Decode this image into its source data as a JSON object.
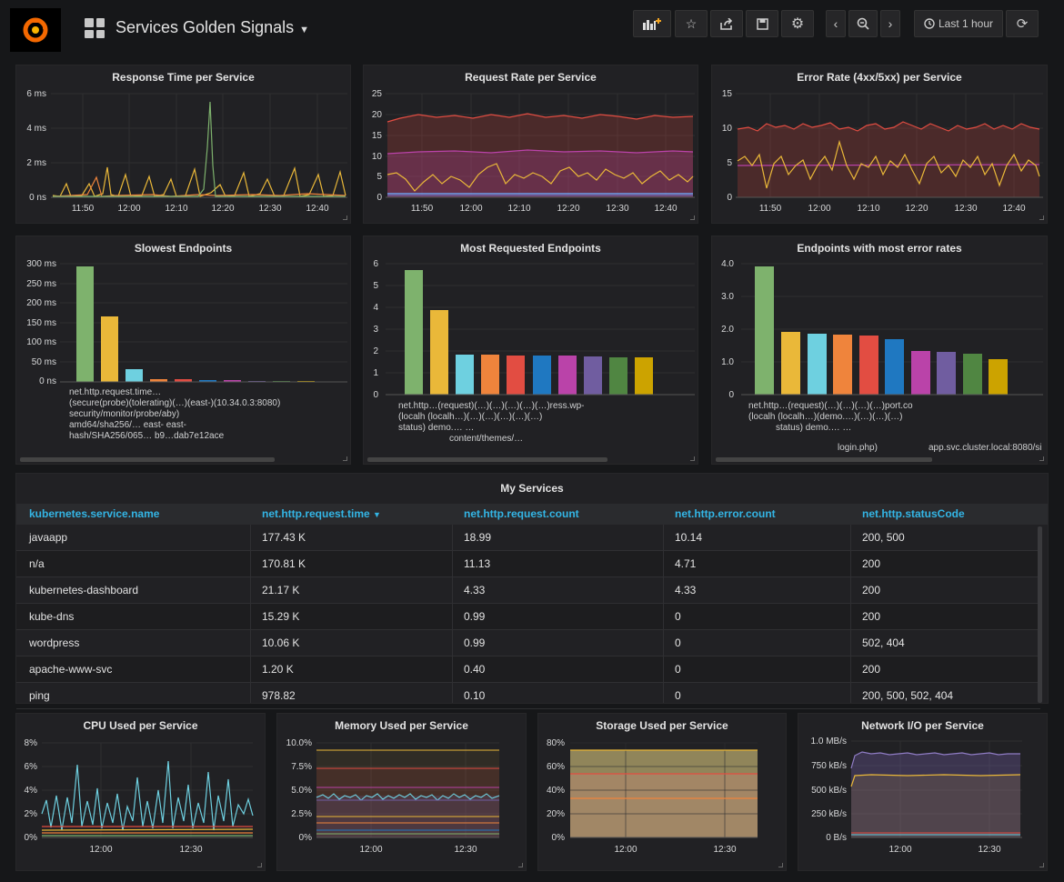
{
  "header": {
    "title": "Services Golden Signals",
    "time_range": "Last 1 hour"
  },
  "icons": {
    "logo": "grafana-logo-icon",
    "dashboards": "dashboard-grid-icon",
    "add_panel": "add-panel-icon",
    "star": "star-icon",
    "share": "share-icon",
    "save": "save-icon",
    "settings": "gear-icon",
    "back": "chevron-left-icon",
    "zoom": "zoom-out-icon",
    "forward": "chevron-right-icon",
    "clock": "clock-icon",
    "refresh": "refresh-icon"
  },
  "panels": {
    "response_time": {
      "title": "Response Time per Service"
    },
    "request_rate": {
      "title": "Request Rate per Service"
    },
    "error_rate": {
      "title": "Error Rate (4xx/5xx) per Service"
    },
    "slowest": {
      "title": "Slowest Endpoints"
    },
    "most_requested": {
      "title": "Most Requested Endpoints"
    },
    "most_errors": {
      "title": "Endpoints with most error rates"
    },
    "my_services": {
      "title": "My Services"
    },
    "cpu": {
      "title": "CPU Used per Service"
    },
    "memory": {
      "title": "Memory Used per Service"
    },
    "storage": {
      "title": "Storage Used per Service"
    },
    "network": {
      "title": "Network I/O per Service"
    }
  },
  "table": {
    "columns": [
      "kubernetes.service.name",
      "net.http.request.time",
      "net.http.request.count",
      "net.http.error.count",
      "net.http.statusCode"
    ],
    "rows": [
      [
        "javaapp",
        "177.43 K",
        "18.99",
        "10.14",
        "200, 500"
      ],
      [
        "n/a",
        "170.81 K",
        "11.13",
        "4.71",
        "200"
      ],
      [
        "kubernetes-dashboard",
        "21.17 K",
        "4.33",
        "4.33",
        "200"
      ],
      [
        "kube-dns",
        "15.29 K",
        "0.99",
        "0",
        "200"
      ],
      [
        "wordpress",
        "10.06 K",
        "0.99",
        "0",
        "502, 404"
      ],
      [
        "apache-www-svc",
        "1.20 K",
        "0.40",
        "0",
        "200"
      ],
      [
        "ping",
        "978.82",
        "0.10",
        "0",
        "200, 500, 502, 404"
      ]
    ]
  },
  "chart_data": [
    {
      "type": "line",
      "title": "Response Time per Service",
      "x": [
        "11:50",
        "12:00",
        "12:10",
        "12:20",
        "12:30",
        "12:40"
      ],
      "y_ticks": [
        "0 ns",
        "2 ms",
        "4 ms",
        "6 ms"
      ],
      "ylim": [
        0,
        6
      ],
      "notes": "spiky series, peak ~5.5 ms near 12:14"
    },
    {
      "type": "line",
      "title": "Request Rate per Service",
      "x": [
        "11:50",
        "12:00",
        "12:10",
        "12:20",
        "12:30",
        "12:40"
      ],
      "y_ticks": [
        "0",
        "5",
        "10",
        "15",
        "20",
        "25"
      ],
      "ylim": [
        0,
        25
      ],
      "series_levels": [
        19,
        11,
        5,
        1,
        0.5
      ]
    },
    {
      "type": "line",
      "title": "Error Rate (4xx/5xx) per Service",
      "x": [
        "11:50",
        "12:00",
        "12:10",
        "12:20",
        "12:30",
        "12:40"
      ],
      "y_ticks": [
        "0",
        "5",
        "10",
        "15"
      ],
      "ylim": [
        0,
        15
      ],
      "series_levels": [
        10,
        5,
        4.7
      ]
    },
    {
      "type": "bar",
      "title": "Slowest Endpoints",
      "y_ticks": [
        "0 ns",
        "50 ms",
        "100 ms",
        "150 ms",
        "200 ms",
        "250 ms",
        "300 ms"
      ],
      "ylim": [
        0,
        300
      ],
      "values": [
        295,
        168,
        32,
        7,
        6,
        5,
        5,
        2,
        2,
        1,
        1
      ],
      "label_text": [
        "net.http.request",
        "(secure",
        "security",
        "amd64/sha256",
        "hash/SHA256/065",
        "east-",
        "east-"
      ]
    },
    {
      "type": "bar",
      "title": "Most Requested Endpoints",
      "y_ticks": [
        "0",
        "1",
        "2",
        "3",
        "4",
        "5",
        "6"
      ],
      "ylim": [
        0,
        6
      ],
      "values": [
        5.75,
        3.92,
        1.86,
        1.85,
        1.83,
        1.82,
        1.8,
        1.76,
        1.72,
        1.7
      ],
      "label_text": [
        "net.http",
        "(localh",
        "status)",
        "demo.",
        "content/themes",
        "ress.wp-"
      ]
    },
    {
      "type": "bar",
      "title": "Endpoints with most error rates",
      "y_ticks": [
        "0",
        "1.0",
        "2.0",
        "3.0",
        "4.0"
      ],
      "ylim": [
        0,
        4
      ],
      "values": [
        3.92,
        1.92,
        1.86,
        1.82,
        1.8,
        1.68,
        1.33,
        1.3,
        1.25,
        1.08
      ],
      "label_text": [
        "net.http",
        "(localh",
        "status)",
        "demo.",
        "login.php)",
        "app.svc.cluster.local:8080/si"
      ]
    },
    {
      "type": "line",
      "title": "CPU Used per Service",
      "x": [
        "12:00",
        "12:30"
      ],
      "y_ticks": [
        "0%",
        "2%",
        "4%",
        "6%",
        "8%"
      ],
      "ylim": [
        0,
        8
      ]
    },
    {
      "type": "line",
      "title": "Memory Used per Service",
      "x": [
        "12:00",
        "12:30"
      ],
      "y_ticks": [
        "0%",
        "2.5%",
        "5.0%",
        "7.5%",
        "10.0%"
      ],
      "ylim": [
        0,
        10
      ],
      "series_levels": [
        9.2,
        7.3,
        4.3,
        2.2,
        1.6,
        0.8,
        0.4
      ]
    },
    {
      "type": "area",
      "title": "Storage Used per Service",
      "x": [
        "12:00",
        "12:30"
      ],
      "y_ticks": [
        "0%",
        "20%",
        "40%",
        "60%",
        "80%"
      ],
      "ylim": [
        0,
        80
      ],
      "series_levels": [
        74,
        54,
        33
      ]
    },
    {
      "type": "line",
      "title": "Network I/O per Service",
      "x": [
        "12:00",
        "12:30"
      ],
      "y_ticks": [
        "0 B/s",
        "250 kB/s",
        "500 kB/s",
        "750 kB/s",
        "1.0 MB/s"
      ],
      "ylim": [
        0,
        1000
      ],
      "series_levels": [
        870,
        650,
        40,
        20
      ]
    }
  ]
}
